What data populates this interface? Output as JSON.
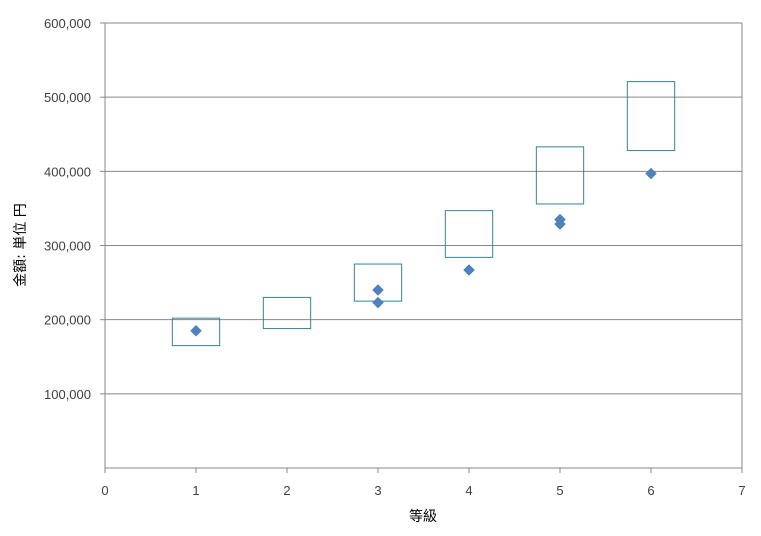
{
  "chart_data": {
    "type": "scatter",
    "xlabel": "等級",
    "ylabel": "金額: 単位 円",
    "xlim": [
      0,
      7
    ],
    "ylim": [
      0,
      600000
    ],
    "x_ticks": [
      0,
      1,
      2,
      3,
      4,
      5,
      6,
      7
    ],
    "x_tick_labels": [
      "0",
      "1",
      "2",
      "3",
      "4",
      "5",
      "6",
      "7"
    ],
    "y_ticks": [
      100000,
      200000,
      300000,
      400000,
      500000,
      600000
    ],
    "y_tick_labels": [
      "100,000",
      "200,000",
      "300,000",
      "400,000",
      "500,000",
      "600,000"
    ],
    "grid": "horizontal",
    "series": [
      {
        "marker": "diamond",
        "color": "#4f81bd",
        "x": [
          1,
          3,
          3,
          4,
          5,
          5,
          6
        ],
        "y": [
          185000,
          240000,
          223000,
          267000,
          335000,
          329000,
          397000
        ]
      }
    ],
    "ranges": {
      "color": "#31849b",
      "x": [
        1,
        2,
        3,
        4,
        5,
        6
      ],
      "low": [
        165000,
        188000,
        225000,
        284000,
        356000,
        428000
      ],
      "high": [
        202000,
        230000,
        275000,
        347000,
        433000,
        521000
      ]
    }
  }
}
